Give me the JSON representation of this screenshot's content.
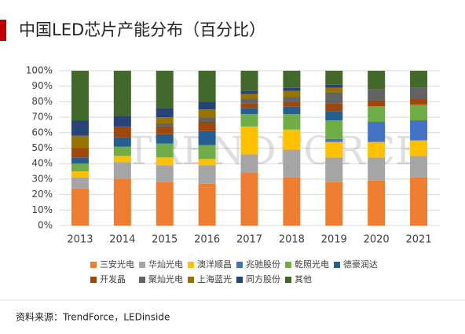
{
  "title": "中国LED芯片产能分布（百分比）",
  "source": "资料来源：TrendForce，LEDinside",
  "watermark": "TRENDFORCE",
  "chart_data": {
    "type": "stacked_bar",
    "categories": [
      "2013",
      "2014",
      "2015",
      "2016",
      "2017",
      "2018",
      "2019",
      "2020",
      "2021"
    ],
    "ylim": [
      0,
      100
    ],
    "yticks": [
      {
        "value": 0,
        "label": "0%"
      },
      {
        "value": 10,
        "label": "10%"
      },
      {
        "value": 20,
        "label": "20%"
      },
      {
        "value": 30,
        "label": "30%"
      },
      {
        "value": 40,
        "label": "40%"
      },
      {
        "value": 50,
        "label": "50%"
      },
      {
        "value": 60,
        "label": "60%"
      },
      {
        "value": 70,
        "label": "70%"
      },
      {
        "value": 80,
        "label": "80%"
      },
      {
        "value": 90,
        "label": "90%"
      },
      {
        "value": 100,
        "label": "100%"
      }
    ],
    "grid": true,
    "series": [
      {
        "name": "三安光电",
        "color": "#ed7d31",
        "values": [
          24,
          30,
          28,
          27,
          34,
          31,
          28,
          29,
          31
        ]
      },
      {
        "name": "华灿光电",
        "color": "#a5a5a5",
        "values": [
          7,
          11,
          11,
          12,
          12,
          18,
          16,
          15,
          14
        ]
      },
      {
        "name": "澳洋顺昌",
        "color": "#ffc000",
        "values": [
          4,
          4,
          5,
          4,
          18,
          13,
          10,
          10,
          10
        ]
      },
      {
        "name": "兆驰股份",
        "color": "#4472c4",
        "values": [
          0,
          0,
          0,
          0,
          0,
          0,
          2,
          13,
          13
        ]
      },
      {
        "name": "乾照光电",
        "color": "#70ad47",
        "values": [
          5,
          6,
          9,
          9,
          8,
          10,
          12,
          10,
          10
        ]
      },
      {
        "name": "德豪润达",
        "color": "#255e91",
        "values": [
          4,
          6,
          6,
          9,
          4,
          5,
          6,
          0,
          0
        ]
      },
      {
        "name": "开发晶",
        "color": "#9e480e",
        "values": [
          6,
          7,
          5,
          6,
          3,
          3,
          5,
          4,
          4
        ]
      },
      {
        "name": "聚灿光电",
        "color": "#636363",
        "values": [
          0,
          0,
          2,
          3,
          3,
          3,
          7,
          7,
          7
        ]
      },
      {
        "name": "上海蓝光",
        "color": "#997300",
        "values": [
          8,
          0,
          4,
          5,
          3,
          4,
          3,
          0,
          0
        ]
      },
      {
        "name": "同方股份",
        "color": "#264478",
        "values": [
          10,
          7,
          6,
          5,
          2,
          2,
          2,
          0,
          0
        ]
      },
      {
        "name": "其他",
        "color": "#43682b",
        "values": [
          32,
          29,
          24,
          20,
          13,
          11,
          9,
          12,
          11
        ]
      }
    ]
  }
}
